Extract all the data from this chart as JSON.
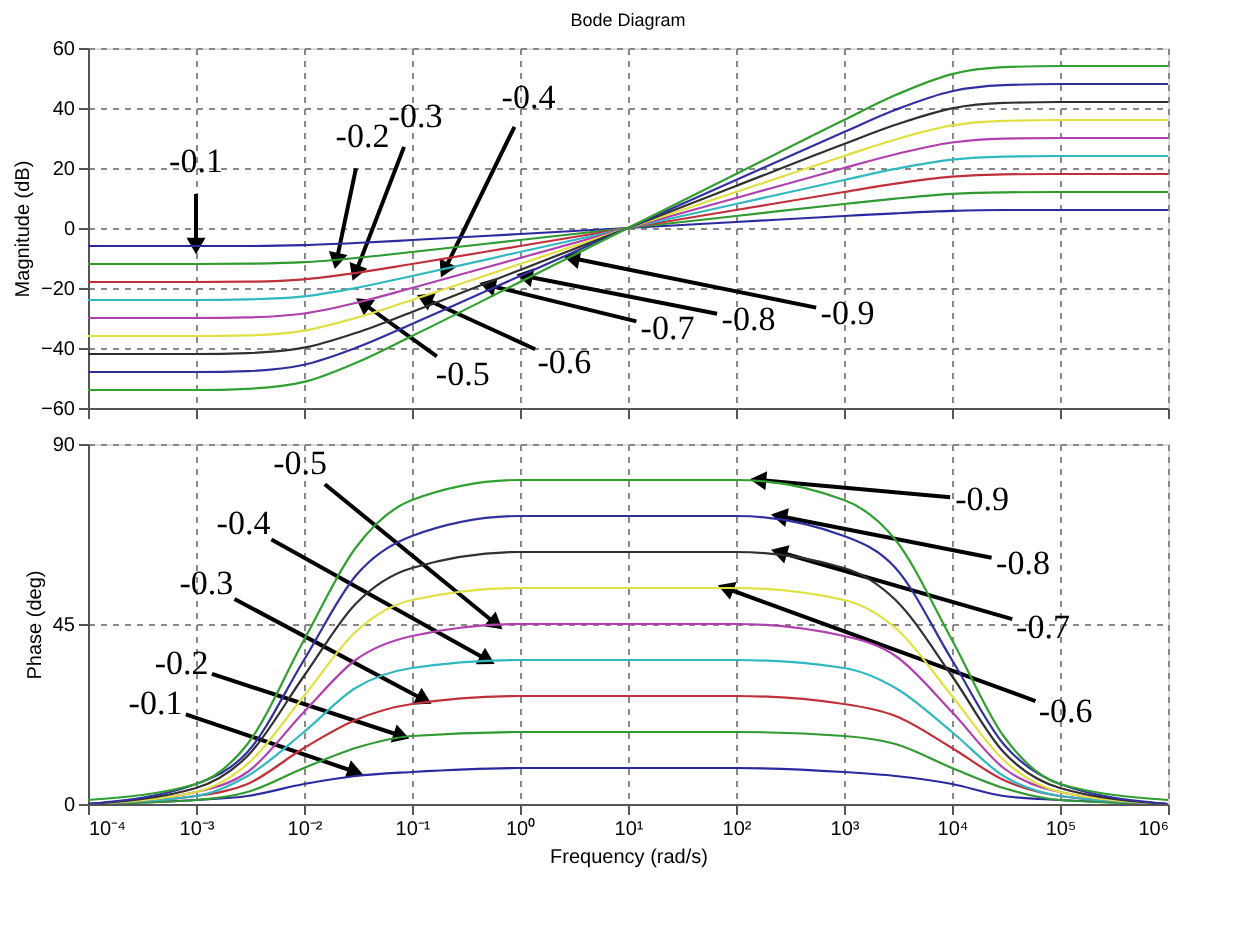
{
  "chart_data": [
    {
      "type": "line",
      "title": "Bode Diagram",
      "ylabel": "Magnitude (dB)",
      "log": "x",
      "grid": true,
      "tick_labels": "y",
      "x": [
        0.0001,
        0.001,
        0.003,
        0.01,
        0.03,
        0.1,
        1,
        10,
        100,
        1000,
        3000,
        10000,
        30000,
        100000,
        1000000
      ],
      "xlim": [
        0.0001,
        1000000
      ],
      "xticks": [
        {
          "value": 0.0001,
          "label": null
        },
        {
          "value": 0.001,
          "label": null
        },
        {
          "value": 0.01,
          "label": null
        },
        {
          "value": 0.1,
          "label": null
        },
        {
          "value": 1,
          "label": null
        },
        {
          "value": 10,
          "label": null
        },
        {
          "value": 100,
          "label": null
        },
        {
          "value": 1000,
          "label": null
        },
        {
          "value": 10000,
          "label": null
        },
        {
          "value": 100000,
          "label": null
        },
        {
          "value": 1000000,
          "label": null
        }
      ],
      "ylim": [
        -60,
        60
      ],
      "yticks": [
        -60,
        -40,
        -20,
        0,
        20,
        40,
        60
      ],
      "series": [
        {
          "color": "#2a2aa0",
          "values": [
            -6,
            -6,
            -6,
            -5.7,
            -5,
            -4,
            -2,
            0,
            2,
            4,
            4.9,
            5.7,
            6,
            6,
            6
          ]
        },
        {
          "color": "#2f9a2f",
          "values": [
            -12,
            -12,
            -11.9,
            -11.4,
            -10,
            -8,
            -4,
            0,
            4,
            8,
            9.8,
            11.4,
            11.9,
            12,
            12
          ]
        },
        {
          "color": "#c0303a",
          "values": [
            -18,
            -18,
            -17.9,
            -17.1,
            -15,
            -12,
            -6,
            0,
            6,
            12,
            14.8,
            17.1,
            17.9,
            18,
            18
          ]
        },
        {
          "color": "#30b8c0",
          "values": [
            -24,
            -24,
            -23.8,
            -22.8,
            -20,
            -16,
            -8,
            0,
            8,
            16,
            19.7,
            22.8,
            23.8,
            24,
            24
          ]
        },
        {
          "color": "#b040b0",
          "values": [
            -30,
            -30,
            -29.8,
            -28.5,
            -25,
            -20,
            -10,
            0,
            10,
            20,
            24.6,
            28.5,
            29.8,
            30,
            30
          ]
        },
        {
          "color": "#e0e040",
          "values": [
            -36,
            -36,
            -35.8,
            -34.2,
            -30,
            -24,
            -12,
            0,
            12,
            24,
            29.5,
            34.2,
            35.7,
            36,
            36
          ]
        },
        {
          "color": "#303030",
          "values": [
            -42,
            -42,
            -41.7,
            -39.9,
            -35,
            -28,
            -14,
            0,
            14,
            28,
            34.4,
            39.9,
            41.7,
            42,
            42
          ]
        },
        {
          "color": "#3030a0",
          "values": [
            -48,
            -48,
            -47.7,
            -45.6,
            -40,
            -32,
            -16,
            0,
            16,
            32,
            39.4,
            45.6,
            47.6,
            48,
            48
          ]
        },
        {
          "color": "#30a030",
          "values": [
            -54,
            -54,
            -53.6,
            -51.3,
            -45,
            -36,
            -18,
            0,
            18,
            36,
            44.3,
            51.3,
            53.6,
            54,
            54
          ]
        }
      ],
      "annotations": [
        {
          "text": "-0.1",
          "x": 0.001,
          "y": -6
        },
        {
          "text": "-0.2",
          "x": 0.02,
          "y": -11
        },
        {
          "text": "-0.3",
          "x": 0.03,
          "y": -15
        },
        {
          "text": "-0.4",
          "x": 0.2,
          "y": -14
        },
        {
          "text": "-0.5",
          "x": 0.035,
          "y": -25
        },
        {
          "text": "-0.6",
          "x": 0.13,
          "y": -23.5
        },
        {
          "text": "-0.7",
          "x": 0.5,
          "y": -19
        },
        {
          "text": "-0.8",
          "x": 1.1,
          "y": -16
        },
        {
          "text": "-0.9",
          "x": 3,
          "y": -10
        }
      ]
    },
    {
      "type": "line",
      "ylabel": "Phase (deg)",
      "xlabel": "Frequency (rad/s)",
      "log": "x",
      "grid": true,
      "x": [
        0.0001,
        0.001,
        0.003,
        0.01,
        0.03,
        0.1,
        1,
        10,
        100,
        1000,
        3000,
        10000,
        30000,
        100000,
        1000000
      ],
      "xlim": [
        0.0001,
        1000000
      ],
      "xticks": [
        {
          "value": 0.0001,
          "label": "10⁻⁴"
        },
        {
          "value": 0.001,
          "label": "10⁻³"
        },
        {
          "value": 0.01,
          "label": "10⁻²"
        },
        {
          "value": 0.1,
          "label": "10⁻¹"
        },
        {
          "value": 1,
          "label": "10⁰"
        },
        {
          "value": 10,
          "label": "10¹"
        },
        {
          "value": 100,
          "label": "10²"
        },
        {
          "value": 1000,
          "label": "10³"
        },
        {
          "value": 10000,
          "label": "10⁴"
        },
        {
          "value": 100000,
          "label": "10⁵"
        },
        {
          "value": 1000000,
          "label": "10⁶"
        }
      ],
      "ylim": [
        0,
        90
      ],
      "yticks": [
        0,
        45,
        90
      ],
      "series": [
        {
          "color": "#2a2aa0",
          "values": [
            0,
            1,
            2,
            5,
            7,
            8,
            9,
            9,
            9,
            8,
            7,
            5,
            2,
            1,
            0
          ]
        },
        {
          "color": "#2f9a2f",
          "values": [
            0,
            1,
            3,
            9,
            14,
            17,
            18,
            18,
            18,
            17,
            15,
            9,
            4,
            1,
            0
          ]
        },
        {
          "color": "#c0303a",
          "values": [
            0,
            2,
            5,
            14,
            21,
            25,
            27,
            27,
            27,
            25,
            22,
            14,
            6,
            2,
            0
          ]
        },
        {
          "color": "#30b8c0",
          "values": [
            0,
            2,
            7,
            18,
            29,
            34,
            36,
            36,
            36,
            34,
            29,
            18,
            7,
            2,
            0
          ]
        },
        {
          "color": "#b040b0",
          "values": [
            0,
            3,
            8,
            23,
            36,
            42,
            45,
            45,
            45,
            42,
            37,
            23,
            9,
            3,
            0
          ]
        },
        {
          "color": "#e0e040",
          "values": [
            0,
            3,
            10,
            27,
            43,
            51,
            54,
            54,
            54,
            51,
            44,
            27,
            11,
            3,
            0
          ]
        },
        {
          "color": "#303030",
          "values": [
            0,
            4,
            12,
            32,
            50,
            59,
            63,
            63,
            63,
            59,
            51,
            32,
            13,
            4,
            0
          ]
        },
        {
          "color": "#3030a0",
          "values": [
            0,
            5,
            13,
            36,
            57,
            67,
            72,
            72,
            72,
            67,
            59,
            36,
            15,
            5,
            0
          ]
        },
        {
          "color": "#30a030",
          "values": [
            1,
            5,
            15,
            41,
            64,
            76,
            81,
            81,
            81,
            76,
            66,
            41,
            17,
            5,
            1
          ]
        }
      ],
      "annotations": [
        {
          "text": "-0.1",
          "x": 0.03,
          "y": 8
        },
        {
          "text": "-0.2",
          "x": 0.08,
          "y": 17
        },
        {
          "text": "-0.3",
          "x": 0.13,
          "y": 26
        },
        {
          "text": "-0.4",
          "x": 0.5,
          "y": 36
        },
        {
          "text": "-0.5",
          "x": 0.6,
          "y": 45
        },
        {
          "text": "-0.6",
          "x": 80,
          "y": 54
        },
        {
          "text": "-0.7",
          "x": 250,
          "y": 63
        },
        {
          "text": "-0.8",
          "x": 250,
          "y": 72
        },
        {
          "text": "-0.9",
          "x": 160,
          "y": 81
        }
      ]
    }
  ]
}
